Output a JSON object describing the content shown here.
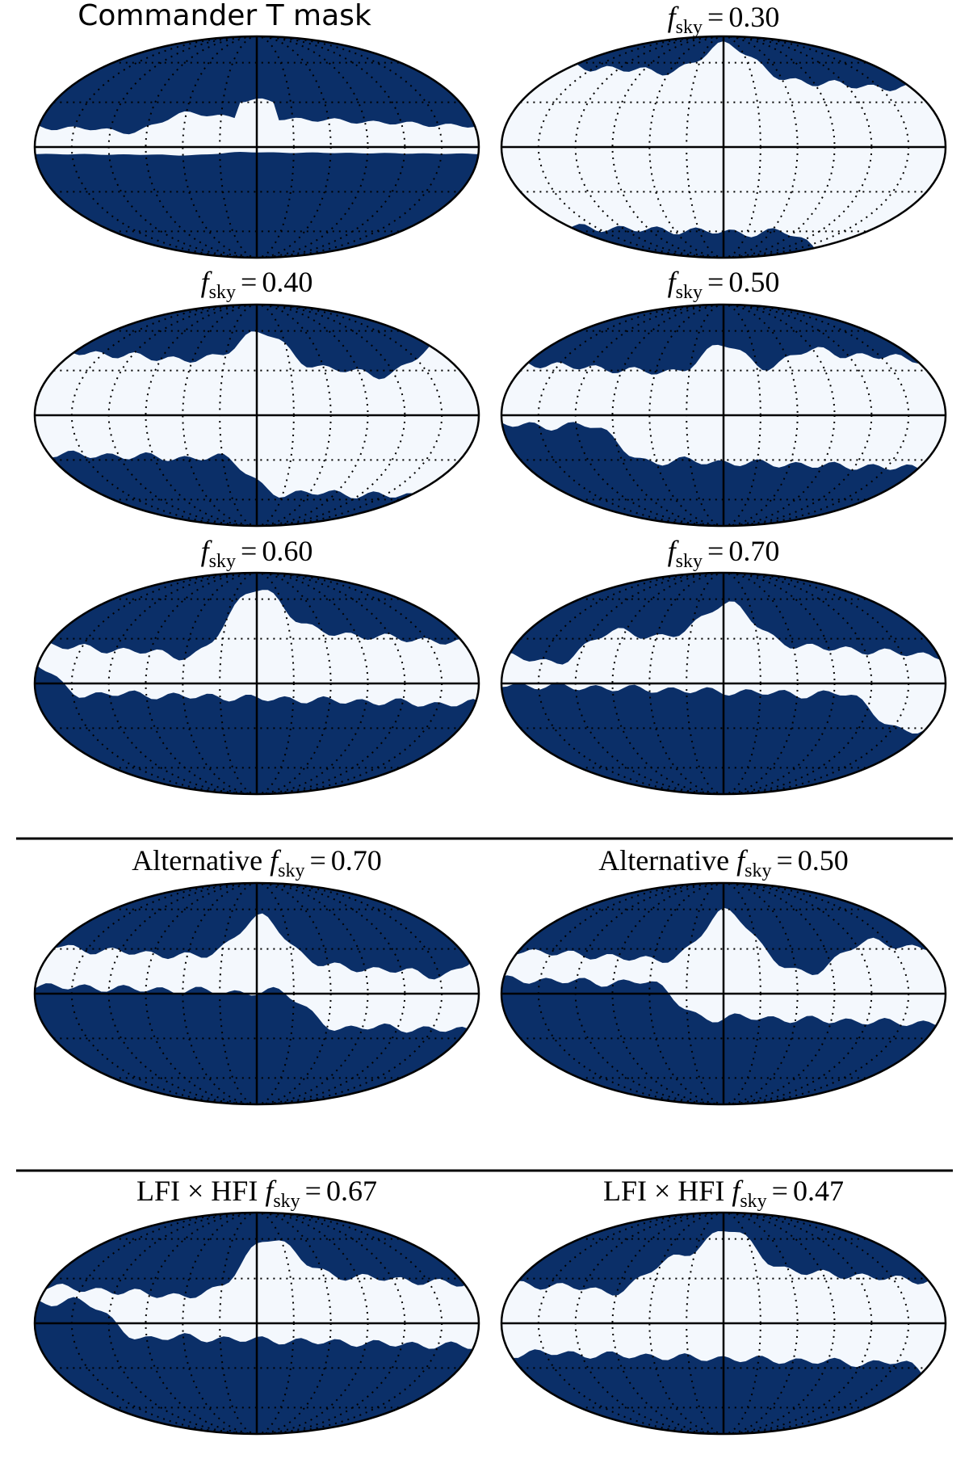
{
  "panels": [
    {
      "title": {
        "text": "Commander T mask"
      }
    },
    {
      "title": {
        "symbol": "f",
        "subscript": "sky",
        "relation": "=",
        "value": "0.30"
      }
    },
    {
      "title": {
        "symbol": "f",
        "subscript": "sky",
        "relation": "=",
        "value": "0.40"
      }
    },
    {
      "title": {
        "symbol": "f",
        "subscript": "sky",
        "relation": "=",
        "value": "0.50"
      }
    },
    {
      "title": {
        "symbol": "f",
        "subscript": "sky",
        "relation": "=",
        "value": "0.60"
      }
    },
    {
      "title": {
        "symbol": "f",
        "subscript": "sky",
        "relation": "=",
        "value": "0.70"
      }
    },
    {
      "title": {
        "prefix": "Alternative",
        "symbol": "f",
        "subscript": "sky",
        "relation": "=",
        "value": "0.70"
      }
    },
    {
      "title": {
        "prefix": "Alternative",
        "symbol": "f",
        "subscript": "sky",
        "relation": "=",
        "value": "0.50"
      }
    },
    {
      "title": {
        "prefix": "LFI × HFI",
        "symbol": "f",
        "subscript": "sky",
        "relation": "=",
        "value": "0.67"
      }
    },
    {
      "title": {
        "prefix": "LFI × HFI",
        "symbol": "f",
        "subscript": "sky",
        "relation": "=",
        "value": "0.47"
      }
    }
  ]
}
